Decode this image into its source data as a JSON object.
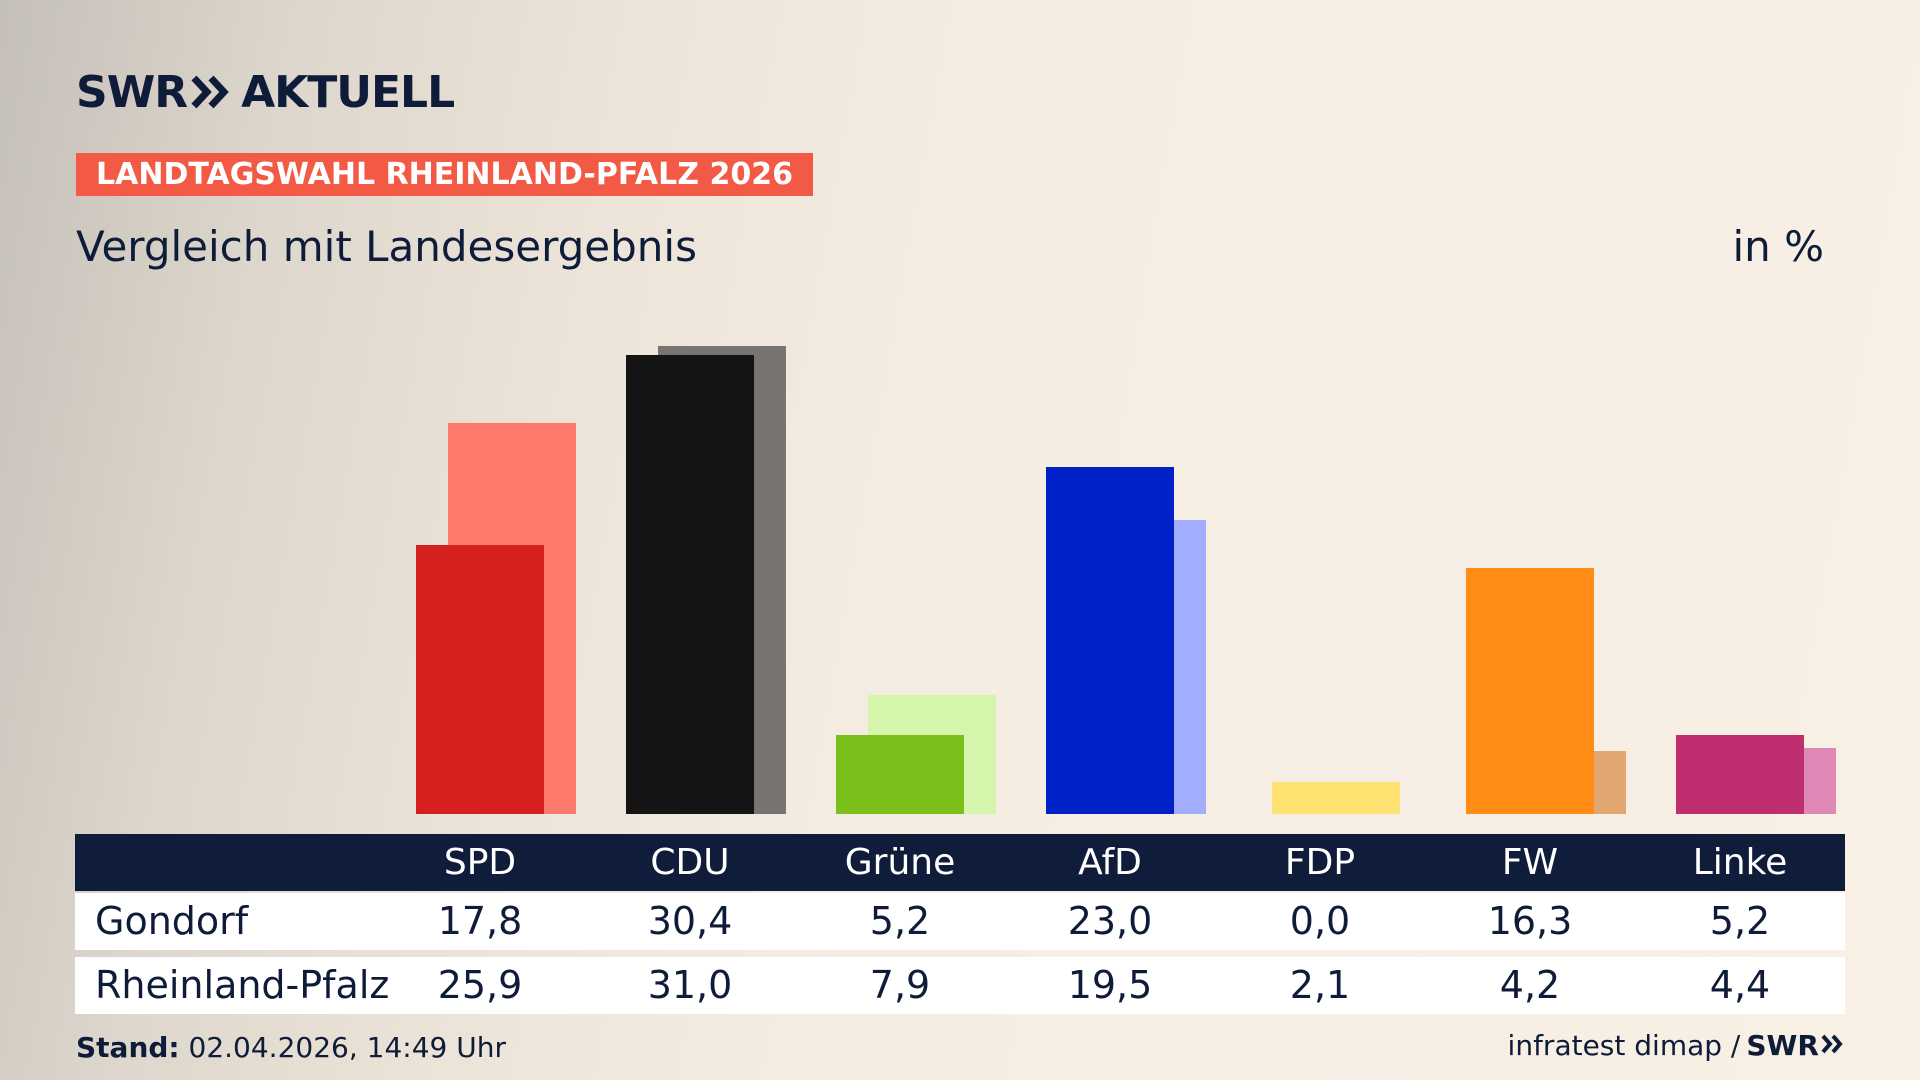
{
  "brand": {
    "logo_swr": "SWR",
    "logo_aktuell": "AKTUELL"
  },
  "banner": "LANDTAGSWAHL RHEINLAND-PFALZ 2026",
  "subtitle": "Vergleich mit Landesergebnis",
  "unit": "in %",
  "colors": {
    "banner": "#f25a45",
    "navy": "#0f1d3b"
  },
  "chart_data": {
    "type": "bar",
    "categories": [
      "SPD",
      "CDU",
      "Grüne",
      "AfD",
      "FDP",
      "FW",
      "Linke"
    ],
    "series": [
      {
        "name": "Gondorf",
        "values": [
          17.8,
          30.4,
          5.2,
          23.0,
          0.0,
          16.3,
          5.2
        ]
      },
      {
        "name": "Rheinland-Pfalz",
        "values": [
          25.9,
          31.0,
          7.9,
          19.5,
          2.1,
          4.2,
          4.4
        ]
      }
    ],
    "colors_primary": [
      "#d61f1f",
      "#141414",
      "#7abf1a",
      "#0021c8",
      "#ffe372",
      "#ff8c14",
      "#bf2f6f"
    ],
    "colors_secondary": [
      "#ff7a6d",
      "#777472",
      "#d6f5ac",
      "#a2adff",
      "#ffe372",
      "#e0a870",
      "#e088b5"
    ],
    "ylim": [
      0,
      31
    ]
  },
  "table": {
    "rows": [
      {
        "label": "Gondorf",
        "values": [
          "17,8",
          "30,4",
          "5,2",
          "23,0",
          "0,0",
          "16,3",
          "5,2"
        ]
      },
      {
        "label": "Rheinland-Pfalz",
        "values": [
          "25,9",
          "31,0",
          "7,9",
          "19,5",
          "2,1",
          "4,2",
          "4,4"
        ]
      }
    ]
  },
  "footer": {
    "stand_label": "Stand:",
    "stand_value": " 02.04.2026, 14:49 Uhr",
    "source": "infratest dimap /",
    "source_brand": "SWR"
  }
}
